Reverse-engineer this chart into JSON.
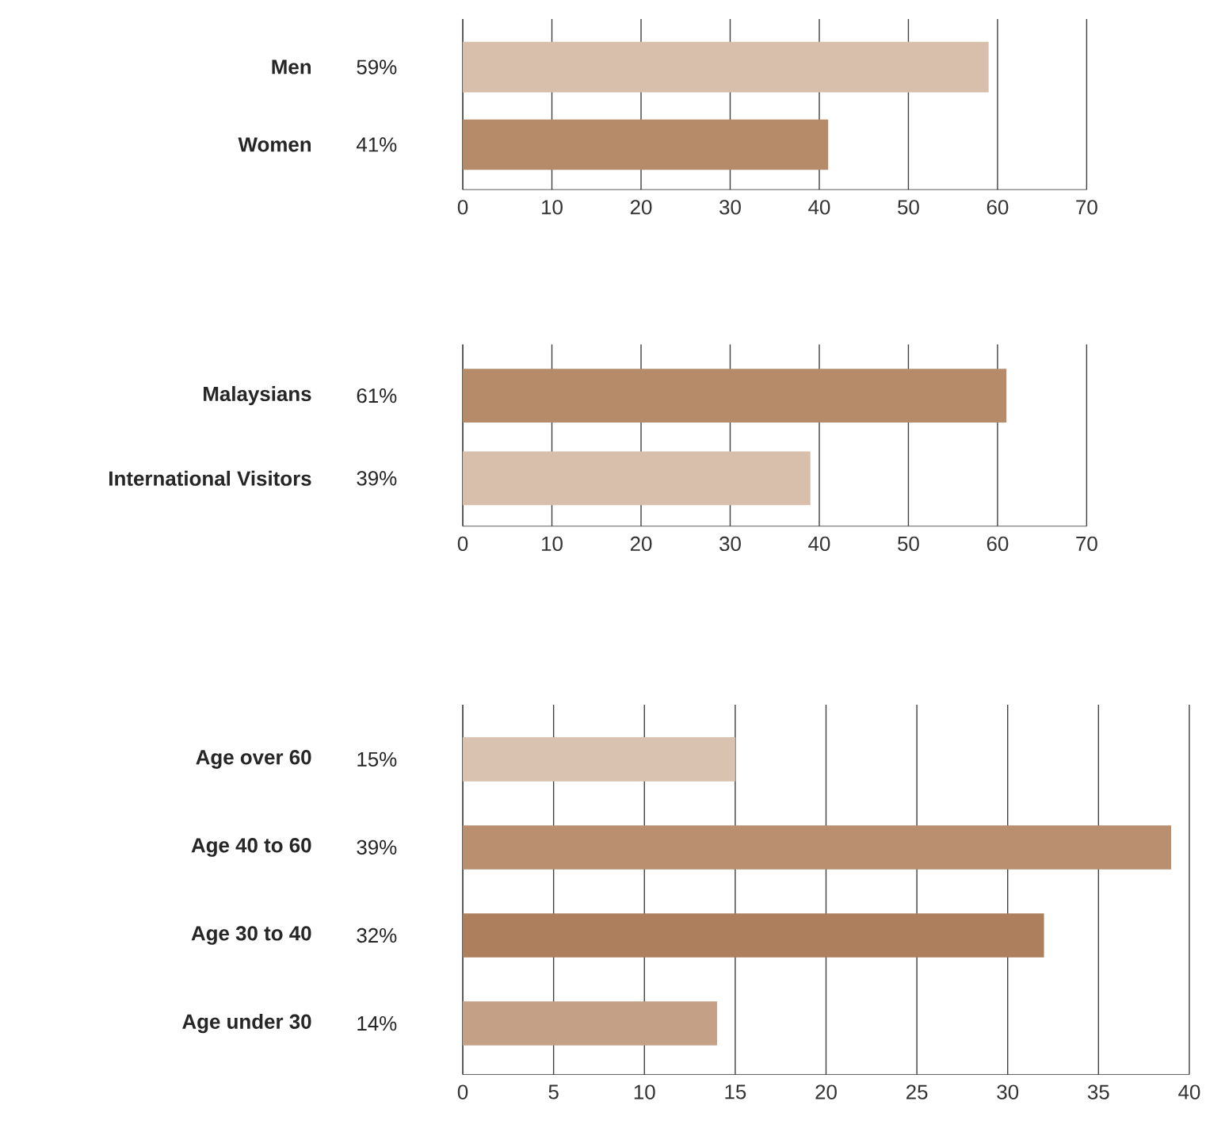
{
  "chart_data": [
    {
      "type": "bar",
      "orientation": "horizontal",
      "categories": [
        "Men",
        "Women"
      ],
      "values": [
        59,
        41
      ],
      "value_labels": [
        "59%",
        "41%"
      ],
      "colors": [
        "#d7bfab",
        "#b58b69"
      ],
      "xlim": [
        0,
        70
      ],
      "xticks": [
        0,
        10,
        20,
        30,
        40,
        50,
        60,
        70
      ],
      "grid": "x"
    },
    {
      "type": "bar",
      "orientation": "horizontal",
      "categories": [
        "Malaysians",
        "International Visitors"
      ],
      "values": [
        61,
        39
      ],
      "value_labels": [
        "61%",
        "39%"
      ],
      "colors": [
        "#b58b69",
        "#d7bfab"
      ],
      "xlim": [
        0,
        70
      ],
      "xticks": [
        0,
        10,
        20,
        30,
        40,
        50,
        60,
        70
      ],
      "grid": "x"
    },
    {
      "type": "bar",
      "orientation": "horizontal",
      "categories": [
        "Age over 60",
        "Age 40 to 60",
        "Age 30 to 40",
        "Age under 30"
      ],
      "values": [
        15,
        39,
        32,
        14
      ],
      "value_labels": [
        "15%",
        "39%",
        "32%",
        "14%"
      ],
      "colors": [
        "#d9c3b0",
        "#b98f70",
        "#ae7f5d",
        "#c4a186"
      ],
      "xlim": [
        0,
        40
      ],
      "xticks": [
        0,
        5,
        10,
        15,
        20,
        25,
        30,
        35,
        40
      ],
      "grid": "x"
    }
  ]
}
